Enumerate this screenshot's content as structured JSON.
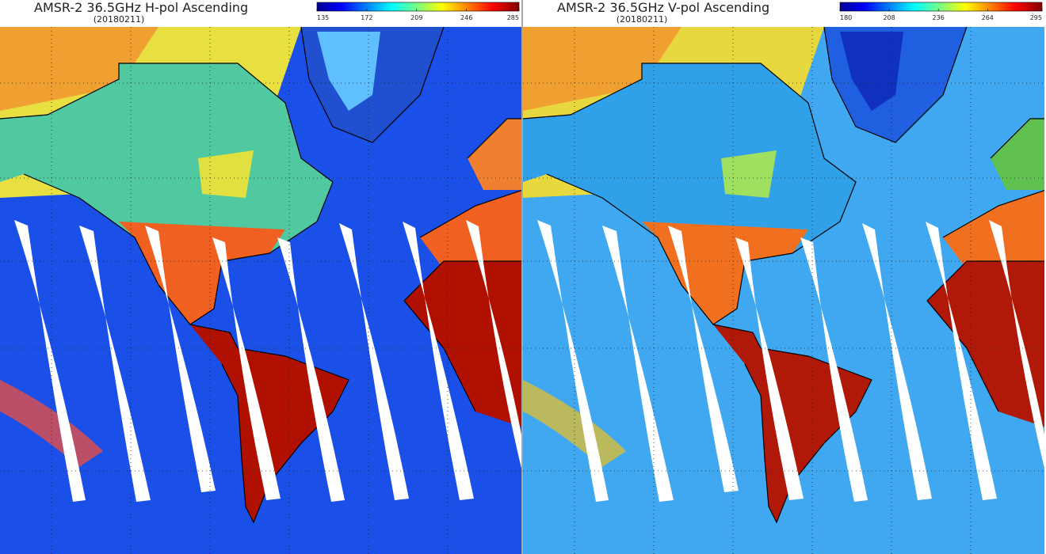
{
  "panels": [
    {
      "title": "AMSR-2 36.5GHz H-pol Ascending",
      "date": "(20180211)",
      "colorbar": {
        "ticks": [
          135,
          172,
          209,
          246,
          285
        ]
      }
    },
    {
      "title": "AMSR-2 36.5GHz V-pol Ascending",
      "date": "(20180211)",
      "colorbar": {
        "ticks": [
          180,
          208,
          236,
          264,
          295
        ]
      }
    }
  ]
}
